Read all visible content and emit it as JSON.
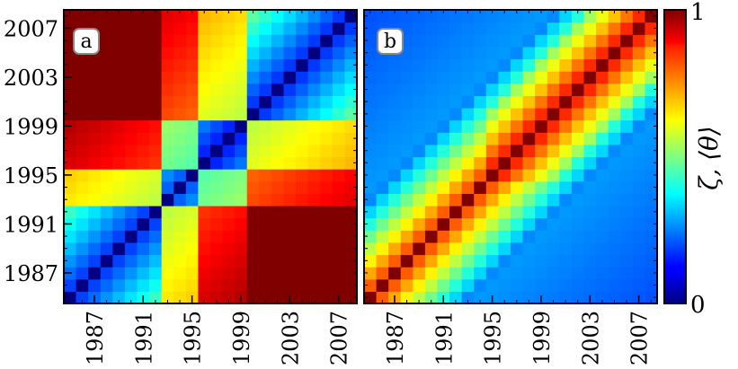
{
  "chart_data": [
    {
      "type": "heatmap",
      "panel_label": "a",
      "x_tick_labels": [
        "1987",
        "1991",
        "1995",
        "1999",
        "2003",
        "2007"
      ],
      "y_tick_labels": [
        "1987",
        "1991",
        "1995",
        "1999",
        "2003",
        "2007"
      ],
      "year_range": [
        1985,
        2008
      ],
      "description_of_pattern": "",
      "model": {
        "kind": "distance",
        "diagonal_value": 0.0
      }
    },
    {
      "type": "heatmap",
      "panel_label": "b",
      "x_tick_labels": [
        "1987",
        "1991",
        "1995",
        "1999",
        "2003",
        "2007"
      ],
      "y_tick_labels": [],
      "year_range": [
        1985,
        2008
      ],
      "model": {
        "kind": "similarity",
        "diagonal_value": 1.0
      }
    }
  ],
  "colorbar": {
    "label": "ζ, ⟨θ⟩",
    "min_label": "0",
    "max_label": "1",
    "range": [
      0,
      1
    ],
    "colormap": "jet"
  }
}
